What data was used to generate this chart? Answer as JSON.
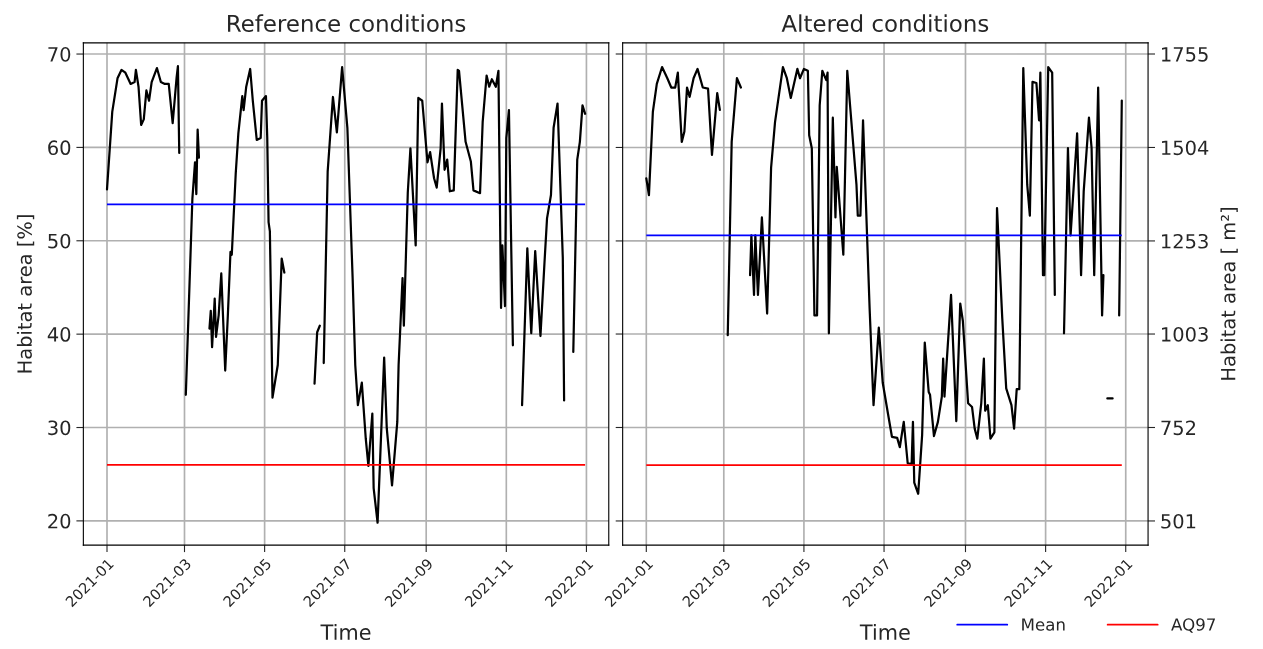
{
  "chart_data": [
    {
      "type": "line",
      "title": "Reference conditions",
      "xlabel": "Time",
      "ylabel": "Habitat area [%]",
      "x": [
        "2021-01-01",
        "2021-01-05",
        "2021-01-09",
        "2021-01-12",
        "2021-01-15",
        "2021-01-19",
        "2021-01-22",
        "2021-01-23",
        "2021-01-25",
        "2021-01-27",
        "2021-01-29",
        "2021-01-31",
        "2021-02-02",
        "2021-02-04",
        "2021-02-08",
        "2021-02-11",
        "2021-02-14",
        "2021-02-17",
        "2021-02-20",
        "2021-02-23",
        "2021-02-24",
        "2021-02-25",
        "2021-02-27",
        "2021-03-02",
        "2021-03-07",
        "2021-03-09",
        "2021-03-10",
        "2021-03-11",
        "2021-03-12",
        "2021-03-15",
        "2021-03-20",
        "2021-03-21",
        "2021-03-22",
        "2021-03-24",
        "2021-03-25",
        "2021-03-27",
        "2021-03-29",
        "2021-04-01",
        "2021-04-03",
        "2021-04-05",
        "2021-04-06",
        "2021-04-09",
        "2021-04-11",
        "2021-04-14",
        "2021-04-15",
        "2021-04-17",
        "2021-04-20",
        "2021-04-22",
        "2021-04-25",
        "2021-04-28",
        "2021-04-29",
        "2021-05-02",
        "2021-05-03",
        "2021-05-04",
        "2021-05-05",
        "2021-05-07",
        "2021-05-11",
        "2021-05-14",
        "2021-05-16",
        "2021-05-20",
        "2021-06-08",
        "2021-06-10",
        "2021-06-12",
        "2021-06-13",
        "2021-06-15",
        "2021-06-18",
        "2021-06-22",
        "2021-06-25",
        "2021-06-29",
        "2021-07-03",
        "2021-07-07",
        "2021-07-09",
        "2021-07-11",
        "2021-07-14",
        "2021-07-17",
        "2021-07-19",
        "2021-07-22",
        "2021-07-23",
        "2021-07-26",
        "2021-07-28",
        "2021-07-31",
        "2021-08-02",
        "2021-08-06",
        "2021-08-10",
        "2021-08-11",
        "2021-08-14",
        "2021-08-15",
        "2021-08-18",
        "2021-08-20",
        "2021-08-24",
        "2021-08-26",
        "2021-08-29",
        "2021-09-02",
        "2021-09-04",
        "2021-09-07",
        "2021-09-09",
        "2021-09-12",
        "2021-09-13",
        "2021-09-15",
        "2021-09-17",
        "2021-09-19",
        "2021-09-22",
        "2021-09-25",
        "2021-09-26",
        "2021-10-01",
        "2021-10-05",
        "2021-10-07",
        "2021-10-12",
        "2021-10-14",
        "2021-10-17",
        "2021-10-19",
        "2021-10-21",
        "2021-10-24",
        "2021-10-26",
        "2021-10-28",
        "2021-10-29",
        "2021-10-31",
        "2021-11-01",
        "2021-11-03",
        "2021-11-06",
        "2021-11-08",
        "2021-11-13",
        "2021-11-17",
        "2021-11-20",
        "2021-11-23",
        "2021-11-27",
        "2021-11-30",
        "2021-12-02",
        "2021-12-05",
        "2021-12-07",
        "2021-12-10",
        "2021-12-14",
        "2021-12-15",
        "2021-12-18",
        "2021-12-22",
        "2021-12-25",
        "2021-12-27",
        "2021-12-29",
        "2021-12-31"
      ],
      "series": [
        {
          "color": "#000000",
          "values": [
            55.5,
            63.8,
            67.4,
            68.3,
            68.0,
            66.8,
            67.0,
            68.3,
            66.5,
            62.4,
            63,
            66.1,
            65,
            67,
            68.5,
            67,
            66.8,
            66.8,
            62.6,
            67.5,
            68.7,
            59.4,
            null,
            33.5,
            54.5,
            58.4,
            55,
            61.9,
            58.9,
            null,
            40.6,
            42.5,
            38.6,
            43.8,
            39.7,
            42,
            46.5,
            36.1,
            42,
            48.8,
            48.5,
            57.2,
            61.5,
            65.5,
            64,
            66.5,
            68.4,
            65,
            60.8,
            61,
            65,
            65.5,
            61,
            52,
            51,
            33.2,
            36.7,
            48.1,
            46.6,
            null,
            34.7,
            40.2,
            40.9,
            null,
            36.9,
            57.4,
            65.4,
            61.6,
            68.6,
            62.1,
            46.0,
            36.7,
            32.4,
            34.8,
            28.8,
            25.9,
            31.5,
            23.5,
            19.8,
            26.8,
            37.5,
            29.9,
            23.8,
            30.6,
            36.7,
            46.0,
            40.9,
            55.2,
            59.9,
            49.5,
            65.3,
            65,
            58.4,
            59.5,
            56.7,
            55.7,
            59.9,
            64.7,
            57.6,
            58.7,
            55.3,
            55.4,
            68.3,
            68.2,
            60.6,
            58.5,
            55.4,
            55.1,
            62.7,
            67.7,
            66.5,
            67.3,
            66.5,
            68.2,
            42.8,
            49.5,
            43,
            61,
            64.0,
            38.8,
            null,
            32.4,
            49.2,
            40.1,
            48.9,
            39.8,
            47.5,
            52.4,
            54.9,
            62.1,
            64.7,
            48.2,
            32.9,
            null,
            38.1,
            58.7,
            60.6,
            64.5,
            63.6
          ]
        }
      ],
      "xlim": [
        "2020-12-14",
        "2022-01-18"
      ],
      "xticks": [
        "2021-01",
        "2021-03",
        "2021-05",
        "2021-07",
        "2021-09",
        "2021-11",
        "2022-01"
      ],
      "ylim": [
        17.4,
        71.2
      ],
      "yticks": [
        20,
        30,
        40,
        50,
        60,
        70
      ],
      "ref_lines": [
        {
          "axis": "y",
          "value": 53.9,
          "color": "#0000ff"
        },
        {
          "axis": "y",
          "value": 26,
          "color": "#ff0000"
        }
      ],
      "grid": true
    },
    {
      "type": "line",
      "title": "Altered conditions",
      "xlabel": "Time",
      "y2label": "Habitat area [ m²]",
      "x": [
        "2021-01-01",
        "2021-01-03",
        "2021-01-06",
        "2021-01-09",
        "2021-01-13",
        "2021-01-17",
        "2021-01-20",
        "2021-01-23",
        "2021-01-25",
        "2021-01-28",
        "2021-01-30",
        "2021-02-01",
        "2021-02-03",
        "2021-02-06",
        "2021-02-09",
        "2021-02-13",
        "2021-02-17",
        "2021-02-20",
        "2021-02-24",
        "2021-02-26",
        "2021-03-01",
        "2021-03-04",
        "2021-03-07",
        "2021-03-11",
        "2021-03-14",
        "2021-03-18",
        "2021-03-21",
        "2021-03-22",
        "2021-03-24",
        "2021-03-25",
        "2021-03-27",
        "2021-03-30",
        "2021-04-03",
        "2021-04-06",
        "2021-04-09",
        "2021-04-15",
        "2021-04-18",
        "2021-04-21",
        "2021-04-26",
        "2021-04-28",
        "2021-05-01",
        "2021-05-04",
        "2021-05-05",
        "2021-05-07",
        "2021-05-09",
        "2021-05-11",
        "2021-05-13",
        "2021-05-15",
        "2021-05-18",
        "2021-05-19",
        "2021-05-20",
        "2021-05-23",
        "2021-05-25",
        "2021-05-26",
        "2021-05-31",
        "2021-06-03",
        "2021-06-10",
        "2021-06-11",
        "2021-06-13",
        "2021-06-15",
        "2021-06-20",
        "2021-06-23",
        "2021-06-27",
        "2021-06-30",
        "2021-07-04",
        "2021-07-07",
        "2021-07-11",
        "2021-07-13",
        "2021-07-16",
        "2021-07-19",
        "2021-07-22",
        "2021-07-23",
        "2021-07-24",
        "2021-07-27",
        "2021-07-30",
        "2021-08-01",
        "2021-08-04",
        "2021-08-05",
        "2021-08-08",
        "2021-08-11",
        "2021-08-14",
        "2021-08-15",
        "2021-08-16",
        "2021-08-21",
        "2021-08-25",
        "2021-08-28",
        "2021-08-30",
        "2021-09-03",
        "2021-09-06",
        "2021-09-08",
        "2021-09-10",
        "2021-09-13",
        "2021-09-15",
        "2021-09-16",
        "2021-09-18",
        "2021-09-20",
        "2021-09-23",
        "2021-09-25",
        "2021-09-29",
        "2021-10-02",
        "2021-10-06",
        "2021-10-08",
        "2021-10-10",
        "2021-10-12",
        "2021-10-15",
        "2021-10-18",
        "2021-10-20",
        "2021-10-22",
        "2021-10-25",
        "2021-10-27",
        "2021-10-28",
        "2021-10-30",
        "2021-10-31",
        "2021-11-03",
        "2021-11-06",
        "2021-11-08",
        "2021-11-10",
        "2021-11-15",
        "2021-11-18",
        "2021-11-20",
        "2021-11-25",
        "2021-11-28",
        "2021-11-30",
        "2021-12-04",
        "2021-12-06",
        "2021-12-08",
        "2021-12-11",
        "2021-12-14",
        "2021-12-15",
        "2021-12-16",
        "2021-12-18",
        "2021-12-22",
        "2021-12-24",
        "2021-12-27",
        "2021-12-29"
      ],
      "series": [
        {
          "color": "#000000",
          "axis": "y2",
          "values": [
            1421,
            1376,
            1600,
            1675,
            1720,
            1690,
            1665,
            1665,
            1705,
            1519,
            1547,
            1665,
            1640,
            1690,
            1715,
            1665,
            1662,
            1484,
            1650,
            1605,
            null,
            1000,
            1519,
            1690,
            1665,
            null,
            1161,
            1268,
            1108,
            1268,
            1108,
            1316,
            1058,
            1449,
            1572,
            1720,
            1690,
            1637,
            1715,
            1690,
            1715,
            1710,
            1537,
            1502,
            1053,
            1053,
            1617,
            1710,
            1685,
            1705,
            1005,
            1584,
            1316,
            1452,
            1216,
            1710,
            1404,
            1321,
            1321,
            1577,
            1073,
            812,
            1020,
            872,
            789,
            727,
            724,
            699,
            767,
            656,
            654,
            767,
            604,
            574,
            732,
            980,
            847,
            840,
            729,
            767,
            835,
            937,
            835,
            1108,
            769,
            1085,
            1038,
            817,
            807,
            749,
            722,
            817,
            937,
            797,
            812,
            722,
            739,
            1341,
            1045,
            857,
            812,
            749,
            855,
            855,
            1717,
            1404,
            1321,
            1680,
            1677,
            1577,
            1705,
            1161,
            1161,
            1720,
            1705,
            1108,
            null,
            1005,
            1502,
            1268,
            1542,
            1161,
            1386,
            1584,
            1502,
            1161,
            1665,
            1053,
            1161,
            null,
            830,
            830,
            null,
            1053,
            1630
          ]
        }
      ],
      "xlim": [
        "2020-12-14",
        "2022-01-18"
      ],
      "xticks": [
        "2021-01",
        "2021-03",
        "2021-05",
        "2021-07",
        "2021-09",
        "2021-11",
        "2022-01"
      ],
      "y2lim": [
        436,
        1785
      ],
      "y2ticks": [
        501,
        752,
        1003,
        1253,
        1504,
        1755
      ],
      "ref_lines": [
        {
          "axis": "y2",
          "value": 1268,
          "label": "Mean",
          "color": "#0000ff"
        },
        {
          "axis": "y2",
          "value": 651,
          "label": "AQ97",
          "color": "#ff0000"
        }
      ],
      "grid": true,
      "legend": "bottom right"
    }
  ]
}
